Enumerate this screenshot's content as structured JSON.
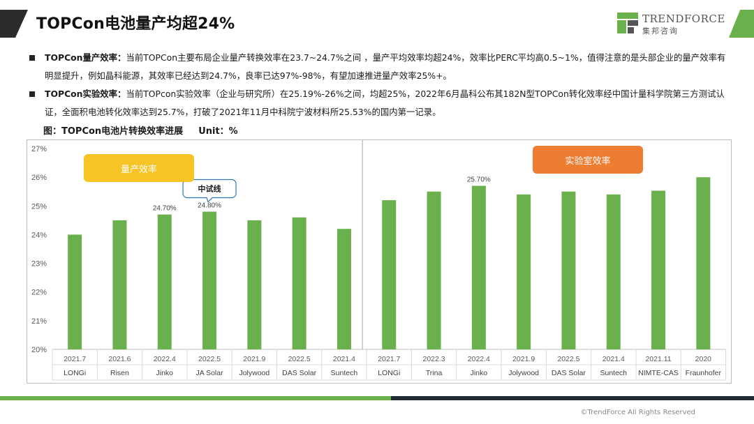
{
  "slide": {
    "title": "TOPCon电池量产均超24%",
    "copyright": "©TrendForce All Rights Reserved"
  },
  "logo": {
    "name": "TRENDFORCE",
    "sub": "集邦咨询"
  },
  "bullets": [
    {
      "label": "TOPCon量产效率：",
      "text": "当前TOPCon主要布局企业量产转换效率在23.7~24.7%之间 ，量产平均效率均超24%，效率比PERC平均高0.5~1%，值得注意的是头部企业的量产效率有明显提升，例如晶科能源，其效率已经达到24.7%，良率已达97%-98%，有望加速推进量产效率25%+。"
    },
    {
      "label": "TOPCon实验效率：",
      "text": "当前TOPcon实验效率（企业与研究所）在25.19%-26%之间，均超25%，2022年6月晶科公布其182N型TOPCon转化效率经中国计量科学院第三方测试认证，全面积电池转化效率达到25.7%，打破了2021年11月中科院宁波材料所25.53%的国内第一记录。"
    }
  ],
  "chart_caption": {
    "title": "图：TOPCon电池片转换效率进展",
    "unit": "Unit：%"
  },
  "chart_data": {
    "type": "bar",
    "title": "图：TOPCon电池片转换效率进展",
    "unit": "Unit：%",
    "ylim": [
      20,
      27
    ],
    "yticks": [
      "20%",
      "21%",
      "22%",
      "23%",
      "24%",
      "25%",
      "26%",
      "27%"
    ],
    "grid": false,
    "bar_color": "#6ab04c",
    "groups": [
      {
        "name": "量产效率",
        "label_color": "#f7c325",
        "categories": [
          {
            "date": "2021.7",
            "company": "LONGi",
            "value": 24.0
          },
          {
            "date": "2021.6",
            "company": "Risen",
            "value": 24.5
          },
          {
            "date": "2022.4",
            "company": "Jinko",
            "value": 24.7,
            "label": "24.70%"
          },
          {
            "date": "2022.5",
            "company": "JA Solar",
            "value": 24.8,
            "label": "24.80%",
            "callout": "中试线"
          },
          {
            "date": "2021.9",
            "company": "Jolywood",
            "value": 24.5
          },
          {
            "date": "2022.5",
            "company": "DAS Solar",
            "value": 24.6
          },
          {
            "date": "2021.4",
            "company": "Suntech",
            "value": 24.2
          }
        ]
      },
      {
        "name": "实验室效率",
        "label_color": "#ed7d31",
        "categories": [
          {
            "date": "2021.7",
            "company": "LONGi",
            "value": 25.2
          },
          {
            "date": "2022.3",
            "company": "Trina",
            "value": 25.5
          },
          {
            "date": "2022.4",
            "company": "Jinko",
            "value": 25.7,
            "label": "25.70%"
          },
          {
            "date": "2021.9",
            "company": "Jolywood",
            "value": 25.4
          },
          {
            "date": "2022.5",
            "company": "DAS Solar",
            "value": 25.5
          },
          {
            "date": "2021.4",
            "company": "Suntech",
            "value": 25.4
          },
          {
            "date": "2021.11",
            "company": "NIMTE-CAS",
            "value": 25.53
          },
          {
            "date": "2020",
            "company": "Fraunhofer",
            "value": 26.0
          }
        ]
      }
    ]
  }
}
